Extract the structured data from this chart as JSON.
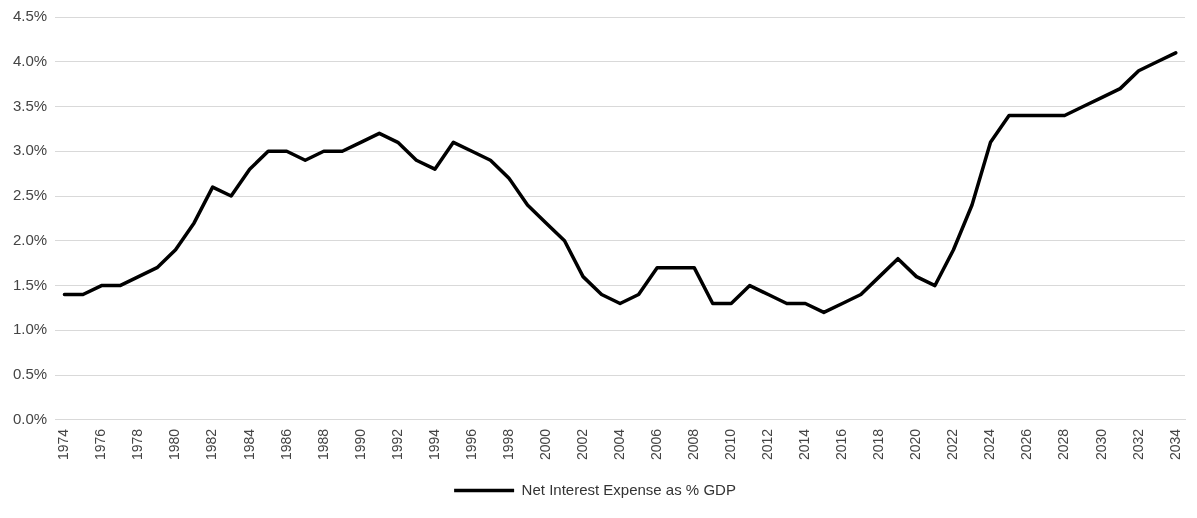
{
  "chart_data": {
    "type": "line",
    "categories": [
      "1974",
      null,
      "1976",
      null,
      "1978",
      null,
      "1980",
      null,
      "1982",
      null,
      "1984",
      null,
      "1986",
      null,
      "1988",
      null,
      "1990",
      null,
      "1992",
      null,
      "1994",
      null,
      "1996",
      null,
      "1998",
      null,
      "2000",
      null,
      "2002",
      null,
      "2004",
      null,
      "2006",
      null,
      "2008",
      null,
      "2010",
      null,
      "2012",
      null,
      "2014",
      null,
      "2016",
      null,
      "2018",
      null,
      "2020",
      null,
      "2022",
      null,
      "2024",
      null,
      "2026",
      null,
      "2028",
      null,
      "2030",
      null,
      "2032",
      null,
      "2034"
    ],
    "series": [
      {
        "name": "Net Interest Expense as % GDP",
        "color": "#000000",
        "values": [
          1.4,
          1.4,
          1.5,
          1.5,
          1.6,
          1.7,
          1.9,
          2.2,
          2.6,
          2.5,
          2.8,
          3.0,
          3.0,
          2.9,
          3.0,
          3.0,
          3.1,
          3.2,
          3.1,
          2.9,
          2.8,
          3.1,
          3.0,
          2.9,
          2.7,
          2.4,
          2.2,
          2.0,
          1.6,
          1.4,
          1.3,
          1.4,
          1.7,
          1.7,
          1.7,
          1.3,
          1.3,
          1.5,
          1.4,
          1.3,
          1.3,
          1.2,
          1.3,
          1.4,
          1.6,
          1.8,
          1.6,
          1.5,
          1.9,
          2.4,
          3.1,
          3.4,
          3.4,
          3.4,
          3.4,
          3.5,
          3.6,
          3.7,
          3.9,
          4.0,
          4.1
        ]
      }
    ],
    "ylim": [
      0,
      4.5
    ],
    "yticks": [
      {
        "value": 0,
        "label": "0.0%"
      },
      {
        "value": 0.5,
        "label": "0.5%"
      },
      {
        "value": 1,
        "label": "1.0%"
      },
      {
        "value": 1.5,
        "label": "1.5%"
      },
      {
        "value": 2,
        "label": "2.0%"
      },
      {
        "value": 2.5,
        "label": "2.5%"
      },
      {
        "value": 3,
        "label": "3.0%"
      },
      {
        "value": 3.5,
        "label": "3.5%"
      },
      {
        "value": 4,
        "label": "4.0%"
      },
      {
        "value": 4.5,
        "label": "4.5%"
      }
    ],
    "grid": "y",
    "legend": "bottom",
    "marker": "none",
    "line_style": "solid"
  }
}
